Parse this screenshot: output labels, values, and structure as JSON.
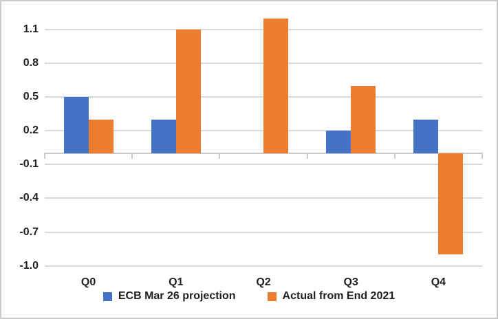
{
  "chart_data": {
    "type": "bar",
    "categories": [
      "Q0",
      "Q1",
      "Q2",
      "Q3",
      "Q4"
    ],
    "series": [
      {
        "name": "ECB Mar 26 projection",
        "color": "#4472C4",
        "values": [
          0.5,
          0.3,
          0,
          0.2,
          0.3
        ]
      },
      {
        "name": "Actual from End 2021",
        "color": "#ED7D31",
        "values": [
          0.3,
          1.1,
          1.2,
          0.6,
          -0.9
        ]
      }
    ],
    "ytick_labels": [
      "1.1",
      "0.8",
      "0.5",
      "0.2",
      "-0.1",
      "-0.4",
      "-0.7",
      "-1.0"
    ],
    "ytick_values": [
      1.1,
      0.8,
      0.5,
      0.2,
      -0.1,
      -0.4,
      -0.7,
      -1.0
    ],
    "ylim": [
      -1.0,
      1.25
    ],
    "title": "",
    "xlabel": "",
    "ylabel": "",
    "grid": "horizontal",
    "legend_position": "bottom",
    "colors": {
      "gridline": "#D9D9D9",
      "axis": "#C9C9C9",
      "text": "#1f1f1f",
      "border": "#C9C9C9"
    }
  }
}
